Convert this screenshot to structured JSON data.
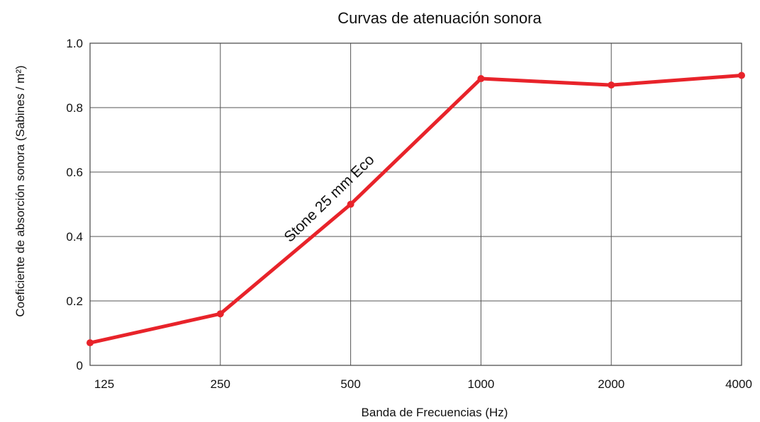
{
  "chart_data": {
    "type": "line",
    "title": "Curvas de atenuación sonora",
    "xlabel": "Banda de Frecuencias (Hz)",
    "ylabel": "Coeficiente de absorción sonora (Sabines / m²)",
    "categories": [
      "125",
      "250",
      "500",
      "1000",
      "2000",
      "4000"
    ],
    "y_ticks": [
      "0",
      "0.2",
      "0.4",
      "0.6",
      "0.8",
      "1.0"
    ],
    "y_tick_values": [
      0,
      0.2,
      0.4,
      0.6,
      0.8,
      1.0
    ],
    "ylim": [
      0,
      1.0
    ],
    "grid": true,
    "series": [
      {
        "name": "Stone 25 mm Eco",
        "color": "#e8232a",
        "values": [
          0.07,
          0.16,
          0.5,
          0.89,
          0.87,
          0.9
        ]
      }
    ]
  }
}
